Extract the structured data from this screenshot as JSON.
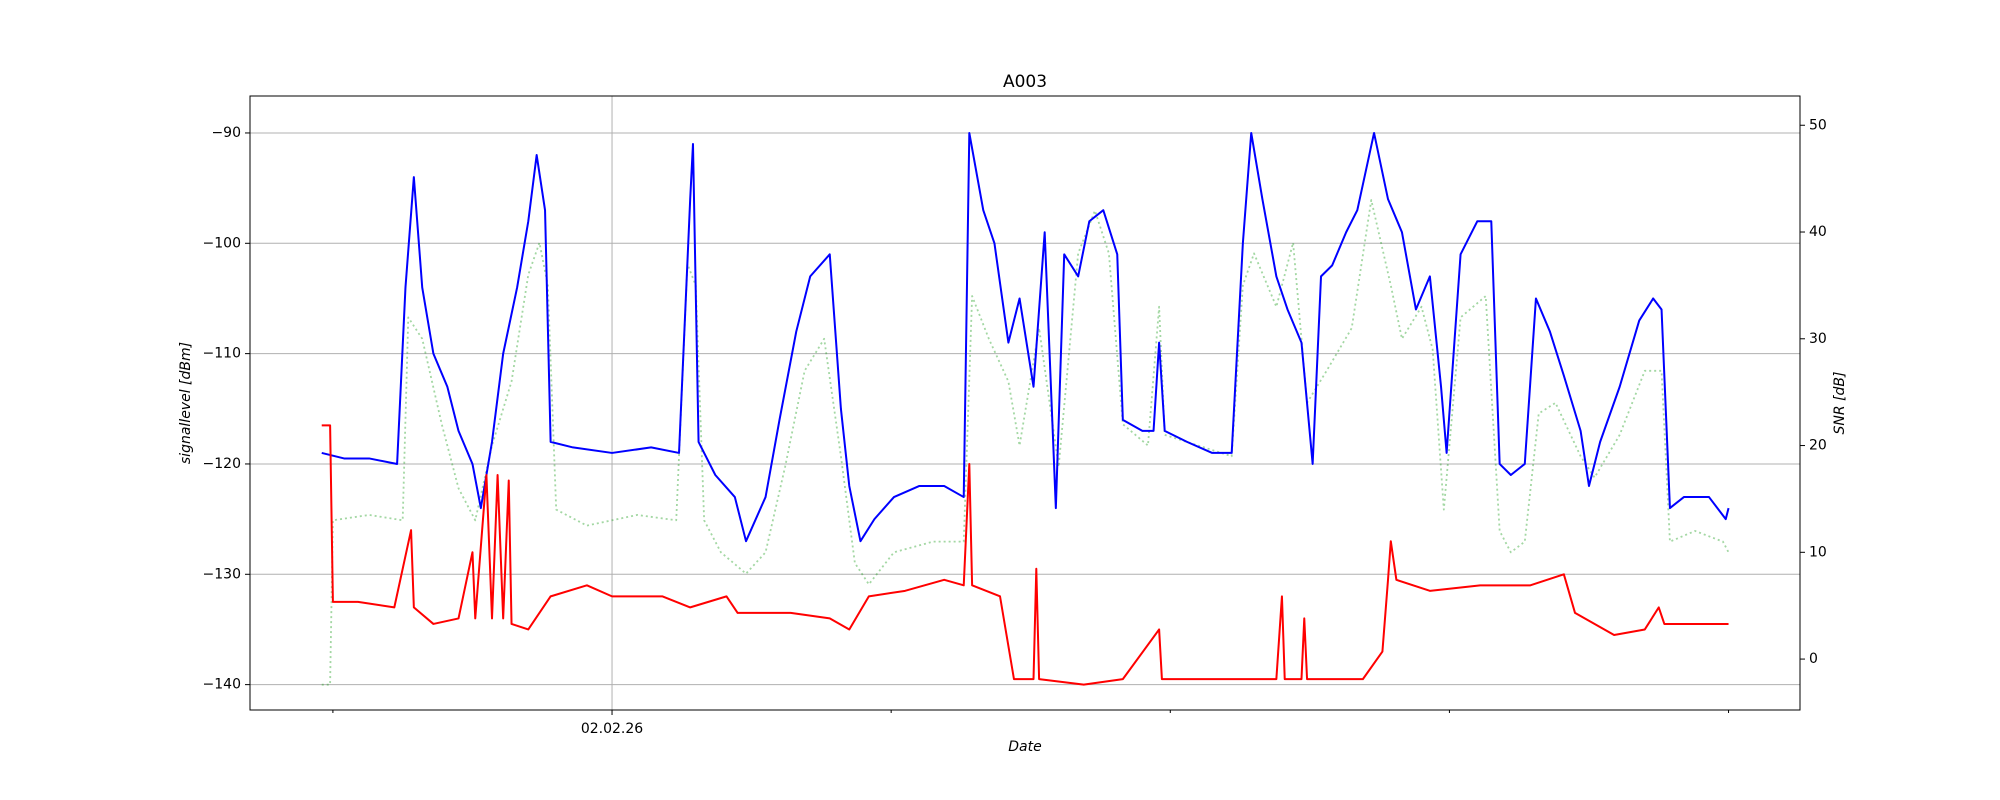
{
  "chart_data": {
    "type": "line",
    "title": "A003",
    "xlabel": "Date",
    "ylabel": "signallevel [dBm]",
    "y2label": "SNR [dB]",
    "xlim": [
      -0.297,
      5.256
    ],
    "xticks": [
      {
        "value": 1,
        "label": "02.02.26"
      }
    ],
    "xminorticks": [
      0,
      2,
      3,
      4,
      5
    ],
    "ylim": [
      -142.3,
      -86.65
    ],
    "yticks": [
      {
        "value": -140,
        "label": "−140"
      },
      {
        "value": -130,
        "label": "−130"
      },
      {
        "value": -120,
        "label": "−120"
      },
      {
        "value": -110,
        "label": "−110"
      },
      {
        "value": -100,
        "label": "−100"
      },
      {
        "value": -90,
        "label": "−90"
      }
    ],
    "y2lim": [
      -4.77,
      52.74
    ],
    "y2ticks": [
      0,
      10,
      20,
      30,
      40,
      50
    ],
    "grid": true,
    "series": [
      {
        "color": "#1a9a1a",
        "style": "dotted",
        "axis": "y2",
        "x": [
          -0.04,
          -0.01,
          0.0,
          0.13,
          0.25,
          0.27,
          0.32,
          0.39,
          0.45,
          0.51,
          0.57,
          0.64,
          0.7,
          0.74,
          0.77,
          0.8,
          0.91,
          1.09,
          1.23,
          1.27,
          1.3,
          1.33,
          1.39,
          1.48,
          1.55,
          1.62,
          1.69,
          1.76,
          1.82,
          1.87,
          1.92,
          2.01,
          2.15,
          2.26,
          2.29,
          2.35,
          2.42,
          2.46,
          2.53,
          2.6,
          2.67,
          2.73,
          2.78,
          2.83,
          2.92,
          2.96,
          2.98,
          3.1,
          3.22,
          3.26,
          3.3,
          3.38,
          3.44,
          3.49,
          3.56,
          3.65,
          3.72,
          3.79,
          3.83,
          3.9,
          3.94,
          3.98,
          4.04,
          4.13,
          4.18,
          4.22,
          4.27,
          4.32,
          4.38,
          4.47,
          4.52,
          4.61,
          4.7,
          4.76,
          4.79,
          4.88,
          4.98,
          5.0
        ],
        "values": [
          -2.4,
          -2.4,
          13,
          13.5,
          13,
          32,
          30,
          22,
          16,
          13,
          20,
          26,
          36,
          39,
          35,
          14,
          12.5,
          13.5,
          13,
          37,
          35,
          13,
          10,
          8,
          10,
          18,
          27,
          30,
          19,
          9,
          7,
          10,
          11,
          11,
          34,
          30,
          26,
          20,
          31,
          18,
          38,
          42,
          38,
          22,
          20,
          33,
          21,
          20,
          19,
          35,
          38,
          33,
          39,
          24,
          27,
          31,
          43,
          35,
          30,
          33,
          29,
          14,
          32,
          34,
          12,
          10,
          11,
          23,
          24,
          19,
          17,
          21,
          27,
          27,
          11,
          12,
          11,
          10
        ]
      },
      {
        "color": "#0000ff",
        "style": "solid",
        "axis": "y",
        "x": [
          -0.04,
          0.04,
          0.13,
          0.23,
          0.26,
          0.29,
          0.32,
          0.36,
          0.41,
          0.45,
          0.5,
          0.53,
          0.57,
          0.61,
          0.66,
          0.7,
          0.73,
          0.76,
          0.78,
          0.86,
          1.0,
          1.14,
          1.24,
          1.28,
          1.29,
          1.31,
          1.37,
          1.44,
          1.48,
          1.55,
          1.6,
          1.66,
          1.71,
          1.78,
          1.82,
          1.85,
          1.89,
          1.94,
          2.01,
          2.1,
          2.19,
          2.26,
          2.28,
          2.33,
          2.37,
          2.42,
          2.46,
          2.51,
          2.55,
          2.59,
          2.62,
          2.67,
          2.71,
          2.76,
          2.81,
          2.83,
          2.9,
          2.94,
          2.96,
          2.98,
          3.06,
          3.15,
          3.22,
          3.26,
          3.29,
          3.33,
          3.38,
          3.42,
          3.47,
          3.51,
          3.54,
          3.58,
          3.63,
          3.67,
          3.73,
          3.78,
          3.83,
          3.88,
          3.93,
          3.97,
          3.99,
          4.04,
          4.1,
          4.15,
          4.18,
          4.22,
          4.27,
          4.31,
          4.36,
          4.41,
          4.47,
          4.5,
          4.54,
          4.61,
          4.68,
          4.73,
          4.76,
          4.79,
          4.84,
          4.93,
          4.99,
          5.0
        ],
        "values": [
          -119,
          -119.5,
          -119.5,
          -120,
          -104,
          -94,
          -104,
          -110,
          -113,
          -117,
          -120,
          -124,
          -118,
          -110,
          -104,
          -98,
          -92,
          -97,
          -118,
          -118.5,
          -119,
          -118.5,
          -119,
          -96,
          -91,
          -118,
          -121,
          -123,
          -127,
          -123,
          -116,
          -108,
          -103,
          -101,
          -115,
          -122,
          -127,
          -125,
          -123,
          -122,
          -122,
          -123,
          -90,
          -97,
          -100,
          -109,
          -105,
          -113,
          -99,
          -124,
          -101,
          -103,
          -98,
          -97,
          -101,
          -116,
          -117,
          -117,
          -109,
          -117,
          -118,
          -119,
          -119,
          -100,
          -90,
          -96,
          -103,
          -106,
          -109,
          -120,
          -103,
          -102,
          -99,
          -97,
          -90,
          -96,
          -99,
          -106,
          -103,
          -113,
          -119,
          -101,
          -98,
          -98,
          -120,
          -121,
          -120,
          -105,
          -108,
          -112,
          -117,
          -122,
          -118,
          -113,
          -107,
          -105,
          -106,
          -124,
          -123,
          -123,
          -125,
          -124
        ]
      },
      {
        "color": "#ff0000",
        "style": "solid",
        "axis": "y",
        "x": [
          -0.04,
          -0.01,
          0.0,
          0.09,
          0.22,
          0.28,
          0.29,
          0.36,
          0.45,
          0.5,
          0.51,
          0.55,
          0.57,
          0.59,
          0.61,
          0.63,
          0.64,
          0.7,
          0.78,
          0.91,
          1.0,
          1.18,
          1.28,
          1.41,
          1.45,
          1.64,
          1.78,
          1.85,
          1.92,
          2.05,
          2.19,
          2.26,
          2.28,
          2.29,
          2.39,
          2.44,
          2.51,
          2.52,
          2.53,
          2.69,
          2.83,
          2.96,
          2.97,
          3.15,
          3.38,
          3.4,
          3.41,
          3.47,
          3.48,
          3.49,
          3.69,
          3.76,
          3.78,
          3.79,
          3.81,
          3.93,
          4.11,
          4.29,
          4.41,
          4.45,
          4.59,
          4.7,
          4.75,
          4.77,
          4.88,
          5.0
        ],
        "values": [
          -116.5,
          -116.5,
          -132.5,
          -132.5,
          -133,
          -126,
          -133,
          -134.5,
          -134,
          -128,
          -134,
          -121,
          -134,
          -121,
          -134,
          -121.5,
          -134.5,
          -135,
          -132,
          -131,
          -132,
          -132,
          -133,
          -132,
          -133.5,
          -133.5,
          -134,
          -135,
          -132,
          -131.5,
          -130.5,
          -131,
          -120,
          -131,
          -132,
          -139.5,
          -139.5,
          -129.5,
          -139.5,
          -140,
          -139.5,
          -135,
          -139.5,
          -139.5,
          -139.5,
          -132,
          -139.5,
          -139.5,
          -134,
          -139.5,
          -139.5,
          -137,
          -130.5,
          -127,
          -130.5,
          -131.5,
          -131,
          -131,
          -130,
          -133.5,
          -135.5,
          -135,
          -133,
          -134.5,
          -134.5,
          -134.5
        ]
      }
    ]
  }
}
